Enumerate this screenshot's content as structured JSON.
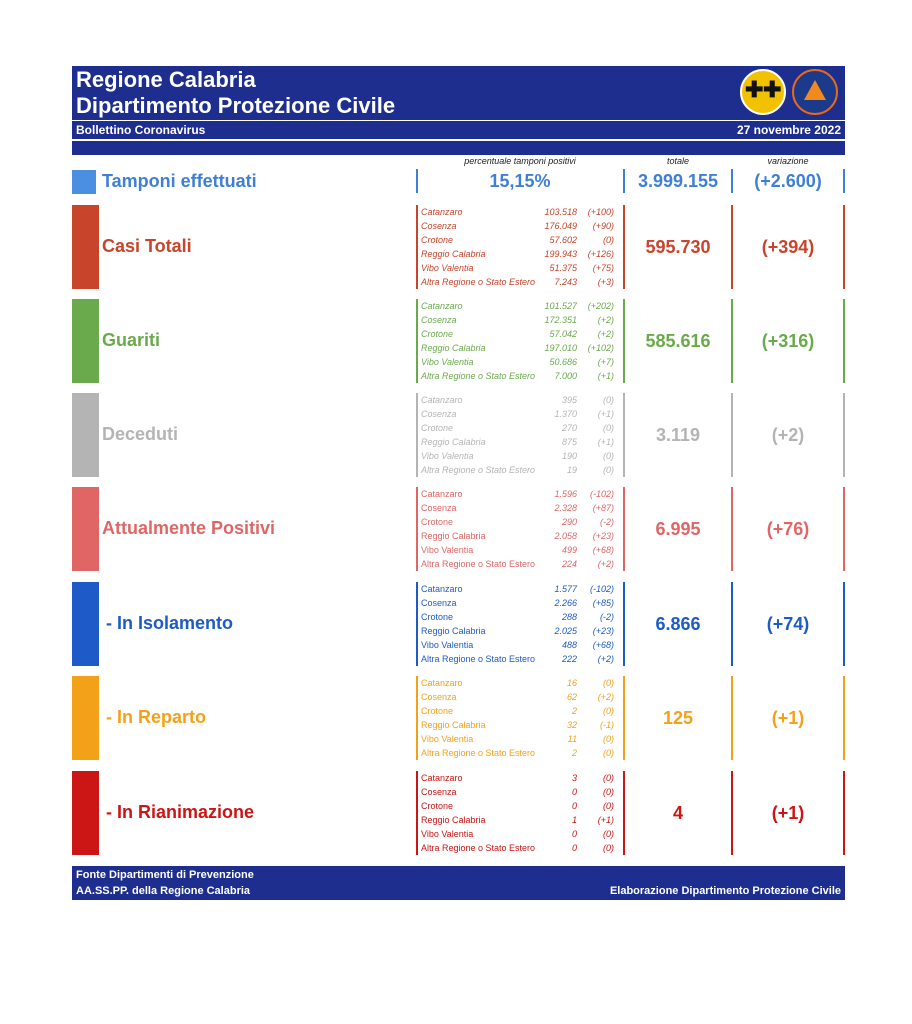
{
  "header": {
    "title_line1": "Regione Calabria",
    "title_line2": "Dipartimento Protezione Civile",
    "subtitle": "Bollettino Coronavirus",
    "date": "27 novembre 2022"
  },
  "column_headers": {
    "positivity": "percentuale tamponi positivi",
    "total": "totale",
    "variation": "variazione"
  },
  "tamponi": {
    "label": "Tamponi effettuati",
    "positivity": "15,15%",
    "total": "3.999.155",
    "variation": "(+2.600)",
    "color": "#3f7fd6"
  },
  "categories": [
    {
      "label": "Casi Totali",
      "total": "595.730",
      "variation": "(+394)",
      "color": "#c8442b",
      "italic": true,
      "rows": [
        {
          "place": "Catanzaro",
          "value": "103.518",
          "delta": "(+100)"
        },
        {
          "place": "Cosenza",
          "value": "176.049",
          "delta": "(+90)"
        },
        {
          "place": "Crotone",
          "value": "57.602",
          "delta": "(0)"
        },
        {
          "place": "Reggio Calabria",
          "value": "199.943",
          "delta": "(+126)"
        },
        {
          "place": "Vibo Valentia",
          "value": "51.375",
          "delta": "(+75)"
        },
        {
          "place": "Altra Regione o Stato Estero",
          "value": "7.243",
          "delta": "(+3)"
        }
      ]
    },
    {
      "label": "Guariti",
      "total": "585.616",
      "variation": "(+316)",
      "color": "#6aaa4c",
      "italic": true,
      "rows": [
        {
          "place": "Catanzaro",
          "value": "101.527",
          "delta": "(+202)"
        },
        {
          "place": "Cosenza",
          "value": "172.351",
          "delta": "(+2)"
        },
        {
          "place": "Crotone",
          "value": "57.042",
          "delta": "(+2)"
        },
        {
          "place": "Reggio Calabria",
          "value": "197.010",
          "delta": "(+102)"
        },
        {
          "place": "Vibo Valentia",
          "value": "50.686",
          "delta": "(+7)"
        },
        {
          "place": "Altra Regione o Stato Estero",
          "value": "7.000",
          "delta": "(+1)"
        }
      ]
    },
    {
      "label": "Deceduti",
      "total": "3.119",
      "variation": "(+2)",
      "color": "#b4b4b4",
      "italic": true,
      "rows": [
        {
          "place": "Catanzaro",
          "value": "395",
          "delta": "(0)"
        },
        {
          "place": "Cosenza",
          "value": "1.370",
          "delta": "(+1)"
        },
        {
          "place": "Crotone",
          "value": "270",
          "delta": "(0)"
        },
        {
          "place": "Reggio Calabria",
          "value": "875",
          "delta": "(+1)"
        },
        {
          "place": "Vibo Valentia",
          "value": "190",
          "delta": "(0)"
        },
        {
          "place": "Altra Regione o Stato Estero",
          "value": "19",
          "delta": "(0)"
        }
      ]
    },
    {
      "label": "Attualmente Positivi",
      "total": "6.995",
      "variation": "(+76)",
      "color": "#e06666",
      "italic": false,
      "rows": [
        {
          "place": "Catanzaro",
          "value": "1.596",
          "delta": "(-102)"
        },
        {
          "place": "Cosenza",
          "value": "2.328",
          "delta": "(+87)"
        },
        {
          "place": "Crotone",
          "value": "290",
          "delta": "(-2)"
        },
        {
          "place": "Reggio Calabria",
          "value": "2.058",
          "delta": "(+23)"
        },
        {
          "place": "Vibo Valentia",
          "value": "499",
          "delta": "(+68)"
        },
        {
          "place": "Altra Regione o Stato Estero",
          "value": "224",
          "delta": "(+2)"
        }
      ]
    },
    {
      "label": "- In Isolamento",
      "total": "6.866",
      "variation": "(+74)",
      "color": "#1e5bc6",
      "italic": false,
      "rows": [
        {
          "place": "Catanzaro",
          "value": "1.577",
          "delta": "(-102)"
        },
        {
          "place": "Cosenza",
          "value": "2.266",
          "delta": "(+85)"
        },
        {
          "place": "Crotone",
          "value": "288",
          "delta": "(-2)"
        },
        {
          "place": "Reggio Calabria",
          "value": "2.025",
          "delta": "(+23)"
        },
        {
          "place": "Vibo Valentia",
          "value": "488",
          "delta": "(+68)"
        },
        {
          "place": "Altra Regione o Stato Estero",
          "value": "222",
          "delta": "(+2)"
        }
      ]
    },
    {
      "label": "- In Reparto",
      "total": "125",
      "variation": "(+1)",
      "color": "#f4a11a",
      "italic": false,
      "rows": [
        {
          "place": "Catanzaro",
          "value": "16",
          "delta": "(0)"
        },
        {
          "place": "Cosenza",
          "value": "62",
          "delta": "(+2)"
        },
        {
          "place": "Crotone",
          "value": "2",
          "delta": "(0)"
        },
        {
          "place": "Reggio Calabria",
          "value": "32",
          "delta": "(-1)"
        },
        {
          "place": "Vibo Valentia",
          "value": "11",
          "delta": "(0)"
        },
        {
          "place": "Altra Regione o Stato Estero",
          "value": "2",
          "delta": "(0)"
        }
      ]
    },
    {
      "label": "- In Rianimazione",
      "total": "4",
      "variation": "(+1)",
      "color": "#cc1515",
      "italic": false,
      "rows": [
        {
          "place": "Catanzaro",
          "value": "3",
          "delta": "(0)"
        },
        {
          "place": "Cosenza",
          "value": "0",
          "delta": "(0)"
        },
        {
          "place": "Crotone",
          "value": "0",
          "delta": "(0)"
        },
        {
          "place": "Reggio Calabria",
          "value": "1",
          "delta": "(+1)"
        },
        {
          "place": "Vibo Valentia",
          "value": "0",
          "delta": "(0)"
        },
        {
          "place": "Altra Regione o Stato Estero",
          "value": "0",
          "delta": "(0)"
        }
      ]
    }
  ],
  "footer": {
    "source_line1": "Fonte Dipartimenti di Prevenzione",
    "source_line2": "AA.SS.PP.  della Regione Calabria",
    "credit": "Elaborazione Dipartimento Protezione Civile"
  },
  "header_color": "#1e2e8e"
}
